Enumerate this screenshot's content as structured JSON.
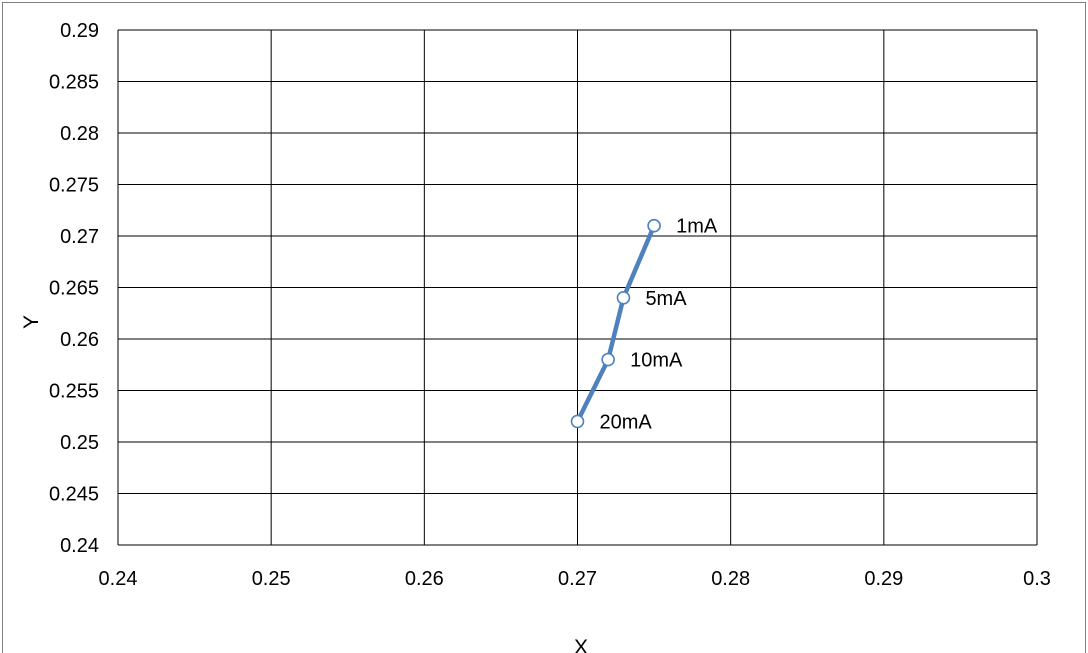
{
  "chart_data": {
    "type": "scatter",
    "title": "",
    "xlabel": "X",
    "ylabel": "Y",
    "xlim": [
      0.24,
      0.3
    ],
    "ylim": [
      0.24,
      0.29
    ],
    "x_ticks": [
      "0.24",
      "0.25",
      "0.26",
      "0.27",
      "0.28",
      "0.29",
      "0.3"
    ],
    "y_ticks": [
      "0.24",
      "0.245",
      "0.25",
      "0.255",
      "0.26",
      "0.265",
      "0.27",
      "0.275",
      "0.28",
      "0.285",
      "0.29"
    ],
    "grid": true,
    "legend": "none",
    "series": [
      {
        "color": "#4f81bd",
        "x": [
          0.275,
          0.273,
          0.272,
          0.27
        ],
        "y": [
          0.271,
          0.264,
          0.258,
          0.252
        ],
        "labels": [
          "1mA",
          "5mA",
          "10mA",
          "20mA"
        ]
      }
    ]
  }
}
